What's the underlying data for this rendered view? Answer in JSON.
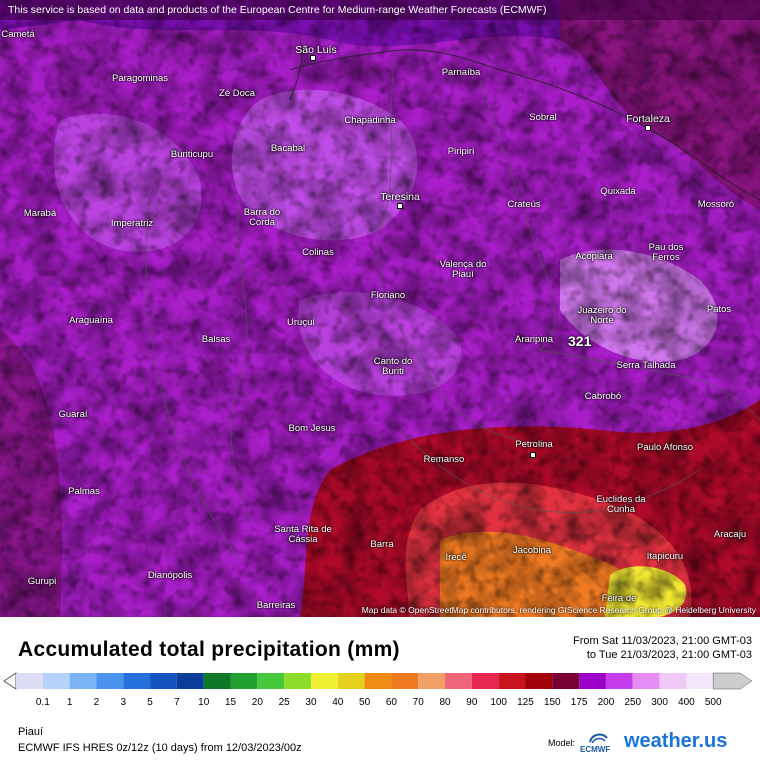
{
  "banner": "This service is based on data and products of the European Centre for Medium-range Weather Forecasts (ECMWF)",
  "attribution": "Map data © OpenStreetMap contributors, rendering GIScience Research Group @ Heidelberg University",
  "max_value": "321",
  "cities": [
    "Cametá",
    "São Luís",
    "Paragominas",
    "Parnaíba",
    "Zé Doca",
    "Fortaleza",
    "Sobral",
    "Chapadinha",
    "Bacabal",
    "Buriticupu",
    "Piripiri",
    "Teresina",
    "Quixadá",
    "Crateús",
    "Mossoró",
    "Marabá",
    "Imperatriz",
    "Barra do Corda",
    "Colinas",
    "Valença do Piauí",
    "Acopiara",
    "Pau dos Ferros",
    "Floriano",
    "Juazeiro do Norte",
    "Patos",
    "Araguaína",
    "Balsas",
    "Uruçuí",
    "Araripina",
    "Canto do Buriti",
    "Serra Talhada",
    "Cabrobó",
    "Guaraí",
    "Bom Jesus",
    "Petrolina",
    "Paulo Afonso",
    "Remanso",
    "Palmas",
    "Euclides da Cunha",
    "Santa Rita de Cássia",
    "Barra",
    "Irecê",
    "Jacobina",
    "Itapicuru",
    "Aracaju",
    "Gurupi",
    "Dianópolis",
    "Feira de",
    "Barreiras"
  ],
  "title": "Accumulated total precipitation (mm)",
  "period_from": "From Sat 11/03/2023, 21:00 GMT-03",
  "period_to": "to Tue 21/03/2023, 21:00 GMT-03",
  "legend": {
    "labels": [
      "0.1",
      "1",
      "2",
      "3",
      "5",
      "7",
      "10",
      "15",
      "20",
      "25",
      "30",
      "40",
      "50",
      "60",
      "70",
      "80",
      "90",
      "100",
      "125",
      "150",
      "175",
      "200",
      "250",
      "300",
      "400",
      "500"
    ],
    "colors": [
      "#dcdcf4",
      "#b4d2fa",
      "#7ab4f5",
      "#4a94ee",
      "#2470dc",
      "#1454be",
      "#0a3c9a",
      "#0c7828",
      "#22a030",
      "#46c83c",
      "#8cdc2c",
      "#f0f032",
      "#e6d21e",
      "#f08c14",
      "#f0781e",
      "#f0a064",
      "#f0647a",
      "#e62850",
      "#c8141e",
      "#a0000a",
      "#780032",
      "#9b00c8",
      "#c83cf0",
      "#e68cf5",
      "#f0c8f8",
      "#f4e6fa",
      "#cdcdcd"
    ]
  },
  "region": "Piauí",
  "model_run": "ECMWF IFS HRES 0z/12z (10 days) from  12/03/2023/00z",
  "model_label": "Model:",
  "ecmwf_label": "ECMWF",
  "brand": "weather.us"
}
